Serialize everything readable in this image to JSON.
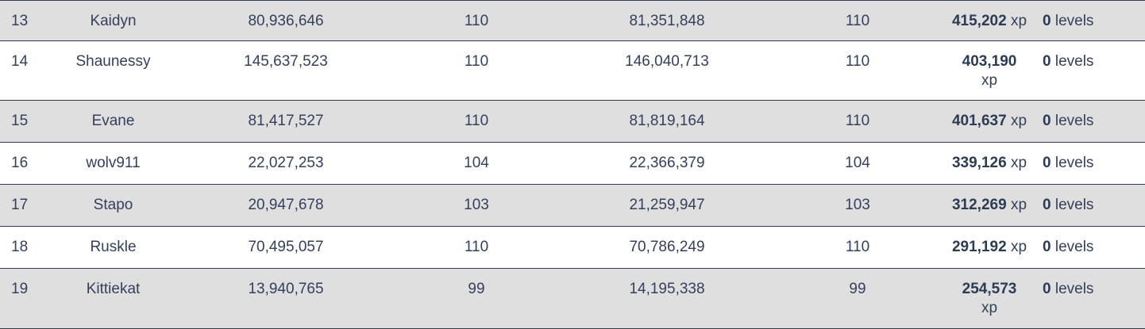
{
  "rows": [
    {
      "rank": "13",
      "name": "Kaidyn",
      "xp_start": "80,936,646",
      "lvl_start": "110",
      "xp_end": "81,351,848",
      "lvl_end": "110",
      "gained": "415,202",
      "gained_unit": "xp",
      "levels": "0",
      "levels_unit": "levels"
    },
    {
      "rank": "14",
      "name": "Shaunessy",
      "xp_start": "145,637,523",
      "lvl_start": "110",
      "xp_end": "146,040,713",
      "lvl_end": "110",
      "gained": "403,190",
      "gained_unit": "xp",
      "levels": "0",
      "levels_unit": "levels"
    },
    {
      "rank": "15",
      "name": "Evane",
      "xp_start": "81,417,527",
      "lvl_start": "110",
      "xp_end": "81,819,164",
      "lvl_end": "110",
      "gained": "401,637",
      "gained_unit": "xp",
      "levels": "0",
      "levels_unit": "levels"
    },
    {
      "rank": "16",
      "name": "wolv911",
      "xp_start": "22,027,253",
      "lvl_start": "104",
      "xp_end": "22,366,379",
      "lvl_end": "104",
      "gained": "339,126",
      "gained_unit": "xp",
      "levels": "0",
      "levels_unit": "levels"
    },
    {
      "rank": "17",
      "name": "Stapo",
      "xp_start": "20,947,678",
      "lvl_start": "103",
      "xp_end": "21,259,947",
      "lvl_end": "103",
      "gained": "312,269",
      "gained_unit": "xp",
      "levels": "0",
      "levels_unit": "levels"
    },
    {
      "rank": "18",
      "name": "Ruskle",
      "xp_start": "70,495,057",
      "lvl_start": "110",
      "xp_end": "70,786,249",
      "lvl_end": "110",
      "gained": "291,192",
      "gained_unit": "xp",
      "levels": "0",
      "levels_unit": "levels"
    },
    {
      "rank": "19",
      "name": "Kittiekat",
      "xp_start": "13,940,765",
      "lvl_start": "99",
      "xp_end": "14,195,338",
      "lvl_end": "99",
      "gained": "254,573",
      "gained_unit": "xp",
      "levels": "0",
      "levels_unit": "levels"
    }
  ]
}
